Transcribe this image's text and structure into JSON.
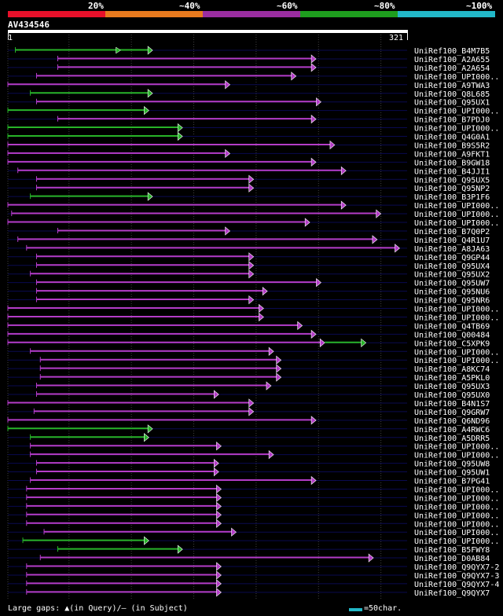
{
  "legend": {
    "labels": [
      "20%",
      "~40%",
      "~60%",
      "~80%",
      "~100%"
    ],
    "colors": [
      "#e8102a",
      "#e87a1e",
      "#9a2da0",
      "#1e9e1e",
      "#22b8c8"
    ]
  },
  "query": {
    "id": "AV434546",
    "start": "1",
    "end": "321",
    "length": 321
  },
  "colors": {
    "magenta": "#b43cc8",
    "green": "#28b428",
    "gap": "#202020",
    "grid": "#404040",
    "rowline": "#0a0a50"
  },
  "hits": [
    {
      "label": "UniRef100_B4M7B5",
      "color": "green",
      "start": 7,
      "end": 117,
      "mid_marker": true
    },
    {
      "label": "UniRef100_A2A655",
      "color": "magenta",
      "start": 41,
      "end": 248
    },
    {
      "label": "UniRef100_A2A654",
      "color": "magenta",
      "start": 41,
      "end": 248
    },
    {
      "label": "UniRef100_UPI000..",
      "color": "magenta",
      "start": 24,
      "end": 232
    },
    {
      "label": "UniRef100_A9TWA3",
      "color": "magenta",
      "start": 1,
      "end": 179
    },
    {
      "label": "UniRef100_Q8L685",
      "color": "green",
      "start": 19,
      "end": 117
    },
    {
      "label": "UniRef100_Q95UX1",
      "color": "magenta",
      "start": 24,
      "end": 252
    },
    {
      "label": "UniRef100_UPI000..",
      "color": "green",
      "start": 1,
      "end": 114
    },
    {
      "label": "UniRef100_B7PDJ0",
      "color": "magenta",
      "start": 41,
      "end": 248
    },
    {
      "label": "UniRef100_UPI000..",
      "color": "green",
      "start": 1,
      "end": 141
    },
    {
      "label": "UniRef100_Q4G0A1",
      "color": "green",
      "start": 1,
      "end": 141
    },
    {
      "label": "UniRef100_B9S5R2",
      "color": "magenta",
      "start": 1,
      "end": 263
    },
    {
      "label": "UniRef100_A9FKT1",
      "color": "magenta",
      "start": 1,
      "end": 179
    },
    {
      "label": "UniRef100_B9GW18",
      "color": "magenta",
      "start": 1,
      "end": 248
    },
    {
      "label": "UniRef100_B4JJI1",
      "color": "magenta",
      "start": 9,
      "end": 272
    },
    {
      "label": "UniRef100_Q95UX5",
      "color": "magenta",
      "start": 24,
      "end": 198
    },
    {
      "label": "UniRef100_Q95NP2",
      "color": "magenta",
      "start": 24,
      "end": 198
    },
    {
      "label": "UniRef100_B3P1F6",
      "color": "green",
      "start": 19,
      "end": 117
    },
    {
      "label": "UniRef100_UPI000..",
      "color": "magenta",
      "start": 1,
      "end": 272
    },
    {
      "label": "UniRef100_UPI000..",
      "color": "magenta",
      "start": 4,
      "end": 300
    },
    {
      "label": "UniRef100_UPI000..",
      "color": "magenta",
      "start": 1,
      "end": 243
    },
    {
      "label": "UniRef100_B7Q0P2",
      "color": "magenta",
      "start": 41,
      "end": 179
    },
    {
      "label": "UniRef100_Q4R1U7",
      "color": "magenta",
      "start": 9,
      "end": 297
    },
    {
      "label": "UniRef100_A8JA63",
      "color": "magenta",
      "start": 16,
      "end": 315
    },
    {
      "label": "UniRef100_Q9GP44",
      "color": "magenta",
      "start": 24,
      "end": 198
    },
    {
      "label": "UniRef100_Q95UX4",
      "color": "magenta",
      "start": 24,
      "end": 198
    },
    {
      "label": "UniRef100_Q95UX2",
      "color": "magenta",
      "start": 19,
      "end": 198
    },
    {
      "label": "UniRef100_Q95UW7",
      "color": "magenta",
      "start": 24,
      "end": 252
    },
    {
      "label": "UniRef100_Q95NU6",
      "color": "magenta",
      "start": 24,
      "end": 209
    },
    {
      "label": "UniRef100_Q95NR6",
      "color": "magenta",
      "start": 24,
      "end": 198
    },
    {
      "label": "UniRef100_UPI000..",
      "color": "magenta",
      "start": 1,
      "end": 206
    },
    {
      "label": "UniRef100_UPI000..",
      "color": "magenta",
      "start": 1,
      "end": 206
    },
    {
      "label": "UniRef100_Q4TB69",
      "color": "magenta",
      "start": 1,
      "end": 237
    },
    {
      "label": "UniRef100_Q00484",
      "color": "magenta",
      "start": 1,
      "end": 248
    },
    {
      "label": "UniRef100_C5XPK9",
      "color": "magenta",
      "start": 1,
      "end": 255,
      "green_end": 288
    },
    {
      "label": "UniRef100_UPI000..",
      "color": "magenta",
      "start": 19,
      "end": 214
    },
    {
      "label": "UniRef100_UPI000..",
      "color": "magenta",
      "start": 27,
      "end": 220
    },
    {
      "label": "UniRef100_A8KC74",
      "color": "magenta",
      "start": 27,
      "end": 220
    },
    {
      "label": "UniRef100_A5PKL0",
      "color": "magenta",
      "start": 27,
      "end": 220
    },
    {
      "label": "UniRef100_Q95UX3",
      "color": "magenta",
      "start": 24,
      "end": 212
    },
    {
      "label": "UniRef100_Q95UX0",
      "color": "magenta",
      "start": 24,
      "end": 170
    },
    {
      "label": "UniRef100_B4N1S7",
      "color": "magenta",
      "start": 1,
      "end": 198
    },
    {
      "label": "UniRef100_Q9GRW7",
      "color": "magenta",
      "start": 22,
      "end": 198
    },
    {
      "label": "UniRef100_Q6ND96",
      "color": "magenta",
      "start": 1,
      "end": 248
    },
    {
      "label": "UniRef100_A4RWC6",
      "color": "green",
      "start": 1,
      "end": 117
    },
    {
      "label": "UniRef100_A5DRR5",
      "color": "green",
      "start": 19,
      "end": 114
    },
    {
      "label": "UniRef100_UPI000..",
      "color": "magenta",
      "start": 19,
      "end": 172
    },
    {
      "label": "UniRef100_UPI000..",
      "color": "magenta",
      "start": 19,
      "end": 214
    },
    {
      "label": "UniRef100_Q95UW8",
      "color": "magenta",
      "start": 24,
      "end": 170
    },
    {
      "label": "UniRef100_Q95UW1",
      "color": "magenta",
      "start": 24,
      "end": 170
    },
    {
      "label": "UniRef100_B7PG41",
      "color": "magenta",
      "start": 19,
      "end": 248
    },
    {
      "label": "UniRef100_UPI000..",
      "color": "magenta",
      "start": 16,
      "end": 172
    },
    {
      "label": "UniRef100_UPI000..",
      "color": "magenta",
      "start": 16,
      "end": 172
    },
    {
      "label": "UniRef100_UPI000..",
      "color": "magenta",
      "start": 16,
      "end": 172
    },
    {
      "label": "UniRef100_UPI000..",
      "color": "magenta",
      "start": 16,
      "end": 172
    },
    {
      "label": "UniRef100_UPI000..",
      "color": "magenta",
      "start": 16,
      "end": 172
    },
    {
      "label": "UniRef100_UPI000..",
      "color": "magenta",
      "start": 30,
      "end": 184
    },
    {
      "label": "UniRef100_UPI000..",
      "color": "green",
      "start": 13,
      "end": 114
    },
    {
      "label": "UniRef100_B5FWY8",
      "color": "green",
      "start": 41,
      "end": 141
    },
    {
      "label": "UniRef100_D0AB84",
      "color": "magenta",
      "start": 27,
      "end": 294
    },
    {
      "label": "UniRef100_Q9QYX7-2",
      "color": "magenta",
      "start": 16,
      "end": 172
    },
    {
      "label": "UniRef100_Q9QYX7-3",
      "color": "magenta",
      "start": 16,
      "end": 172
    },
    {
      "label": "UniRef100_Q9QYX7-4",
      "color": "magenta",
      "start": 16,
      "end": 172
    },
    {
      "label": "UniRef100_Q9QYX7",
      "color": "magenta",
      "start": 16,
      "end": 172
    }
  ],
  "footer": {
    "large_gaps": "Large gaps: ▲(in Query)/— (in Subject)",
    "scale_text": "=50char."
  }
}
